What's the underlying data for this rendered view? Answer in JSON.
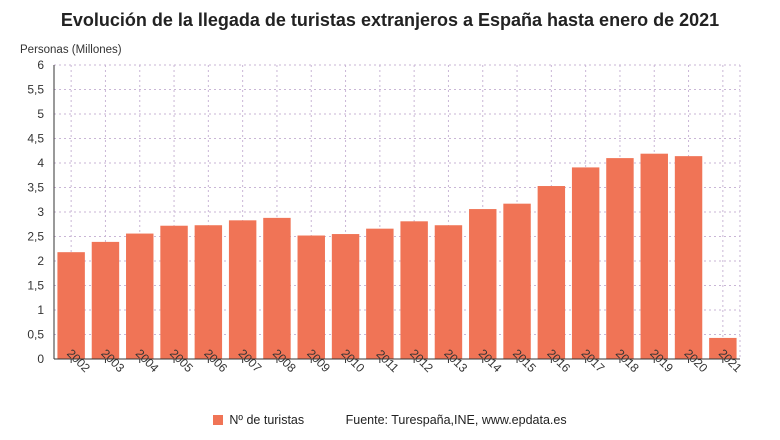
{
  "title": "Evolución de la llegada de turistas extranjeros a España hasta enero de 2021",
  "legend": {
    "label": "Nº de turistas",
    "source": "Fuente: Turespaña,INE, www.epdata.es"
  },
  "colors": {
    "bar": "#f07456",
    "grid": "#c9b6d6",
    "axis": "#333333"
  },
  "chart_data": {
    "type": "bar",
    "title": "Evolución de la llegada de turistas extranjeros a España hasta enero de 2021",
    "ylabel": "Personas (Millones)",
    "xlabel": "",
    "ylim": [
      0,
      6
    ],
    "yticks": [
      "0",
      "0,5",
      "1",
      "1,5",
      "2",
      "2,5",
      "3",
      "3,5",
      "4",
      "4,5",
      "5",
      "5,5",
      "6"
    ],
    "grid": true,
    "legend_position": "bottom",
    "categories": [
      "2002",
      "2003",
      "2004",
      "2005",
      "2006",
      "2007",
      "2008",
      "2009",
      "2010",
      "2011",
      "2012",
      "2013",
      "2014",
      "2015",
      "2016",
      "2017",
      "2018",
      "2019",
      "2020",
      "2021"
    ],
    "series": [
      {
        "name": "Nº de turistas",
        "values": [
          2.18,
          2.39,
          2.56,
          2.72,
          2.73,
          2.83,
          2.88,
          2.52,
          2.55,
          2.66,
          2.81,
          2.73,
          3.06,
          3.17,
          3.53,
          3.91,
          4.1,
          4.19,
          4.14,
          0.43
        ]
      }
    ]
  }
}
